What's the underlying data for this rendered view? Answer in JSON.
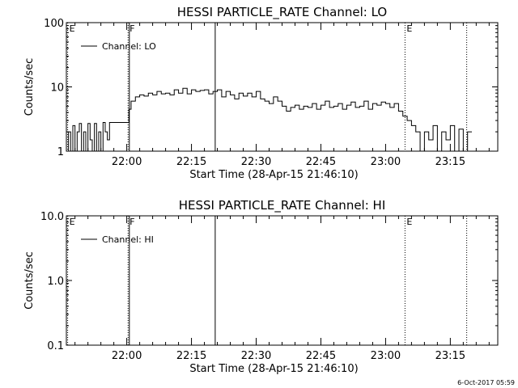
{
  "timestamp": "6-Oct-2017 05:59",
  "chart_data": [
    {
      "type": "line",
      "title": "HESSI PARTICLE_RATE Channel: LO",
      "xlabel": "Start Time (28-Apr-15 21:46:10)",
      "ylabel": "Counts/sec",
      "yscale": "log",
      "ylim": [
        1,
        100
      ],
      "xlim_minutes": [
        0,
        100
      ],
      "x_ticks": [
        {
          "t": 14,
          "label": "22:00"
        },
        {
          "t": 29,
          "label": "22:15"
        },
        {
          "t": 44,
          "label": "22:30"
        },
        {
          "t": 59,
          "label": "22:45"
        },
        {
          "t": 74,
          "label": "23:00"
        },
        {
          "t": 89,
          "label": "23:15"
        }
      ],
      "y_ticks": [
        {
          "v": 1,
          "label": "1"
        },
        {
          "v": 10,
          "label": "10"
        },
        {
          "v": 100,
          "label": "100"
        }
      ],
      "legend": {
        "label": "Channel: LO",
        "position": "top-left"
      },
      "markers": [
        {
          "t": 0.3,
          "label": "E",
          "style": "dotted"
        },
        {
          "t": 14.3,
          "label": "F",
          "style": "dotted"
        },
        {
          "t": 14.6,
          "label": "",
          "style": "solid"
        },
        {
          "t": 34.5,
          "label": "",
          "style": "solid"
        },
        {
          "t": 78.5,
          "label": "E",
          "style": "dotted"
        },
        {
          "t": 92.8,
          "label": "",
          "style": "dotted"
        }
      ],
      "series": [
        {
          "name": "Channel: LO",
          "x": [
            0,
            0.5,
            1,
            1.5,
            2,
            2.5,
            3,
            3.5,
            4,
            4.5,
            5,
            5.5,
            6,
            6.5,
            7,
            7.5,
            8,
            8.5,
            9,
            9.5,
            10,
            14,
            14.5,
            15,
            16,
            17,
            18,
            19,
            20,
            21,
            22,
            23,
            24,
            25,
            26,
            27,
            28,
            29,
            30,
            31,
            32,
            33,
            34,
            35,
            36,
            37,
            38,
            39,
            40,
            41,
            42,
            43,
            44,
            45,
            46,
            47,
            48,
            49,
            50,
            51,
            52,
            53,
            54,
            55,
            56,
            57,
            58,
            59,
            60,
            61,
            62,
            63,
            64,
            65,
            66,
            67,
            68,
            69,
            70,
            71,
            72,
            73,
            74,
            75,
            76,
            77,
            78,
            79,
            80,
            81,
            82,
            83,
            84,
            85,
            86,
            87,
            88,
            89,
            90,
            91,
            92,
            93
          ],
          "y": [
            1,
            2,
            1,
            2.5,
            1,
            2,
            2.7,
            1,
            2,
            1,
            2.7,
            1.5,
            1,
            2.7,
            1,
            2,
            1,
            2.8,
            2,
            1.5,
            2.8,
            2.8,
            4.5,
            6,
            7,
            7.5,
            7.2,
            8,
            7.5,
            8.5,
            7.8,
            8,
            7.5,
            9,
            8,
            9.5,
            7.8,
            9,
            8.5,
            8.8,
            9,
            7.8,
            8.5,
            9,
            7,
            8.5,
            7.5,
            6.5,
            8,
            7.2,
            8,
            7,
            8.5,
            6.5,
            6,
            5.5,
            7,
            6,
            5,
            4.2,
            4.8,
            5.2,
            4.5,
            5,
            4.8,
            5.5,
            4.5,
            5.2,
            6,
            4.8,
            5,
            5.5,
            4.5,
            5.2,
            5.8,
            4.8,
            5,
            6,
            4.5,
            5.5,
            5.2,
            5.8,
            5.5,
            4.8,
            5.5,
            4.2,
            3.5,
            3,
            2.5,
            2,
            1,
            2,
            1.5,
            2.5,
            1,
            2,
            1.5,
            2.5,
            1,
            2.2,
            1,
            2
          ]
        }
      ]
    },
    {
      "type": "line",
      "title": "HESSI PARTICLE_RATE Channel: HI",
      "xlabel": "Start Time (28-Apr-15 21:46:10)",
      "ylabel": "Counts/sec",
      "yscale": "log",
      "ylim": [
        0.1,
        10.0
      ],
      "xlim_minutes": [
        0,
        100
      ],
      "x_ticks": [
        {
          "t": 14,
          "label": "22:00"
        },
        {
          "t": 29,
          "label": "22:15"
        },
        {
          "t": 44,
          "label": "22:30"
        },
        {
          "t": 59,
          "label": "22:45"
        },
        {
          "t": 74,
          "label": "23:00"
        },
        {
          "t": 89,
          "label": "23:15"
        }
      ],
      "y_ticks": [
        {
          "v": 0.1,
          "label": "0.1"
        },
        {
          "v": 1.0,
          "label": "1.0"
        },
        {
          "v": 10.0,
          "label": "10.0"
        }
      ],
      "legend": {
        "label": "Channel: HI",
        "position": "top-left"
      },
      "markers": [
        {
          "t": 0.3,
          "label": "E",
          "style": "dotted"
        },
        {
          "t": 14.3,
          "label": "F",
          "style": "dotted"
        },
        {
          "t": 14.6,
          "label": "",
          "style": "solid"
        },
        {
          "t": 34.5,
          "label": "",
          "style": "solid"
        },
        {
          "t": 78.5,
          "label": "E",
          "style": "dotted"
        },
        {
          "t": 92.8,
          "label": "",
          "style": "dotted"
        }
      ],
      "series": [
        {
          "name": "Channel: HI",
          "x": [],
          "y": []
        }
      ]
    }
  ]
}
